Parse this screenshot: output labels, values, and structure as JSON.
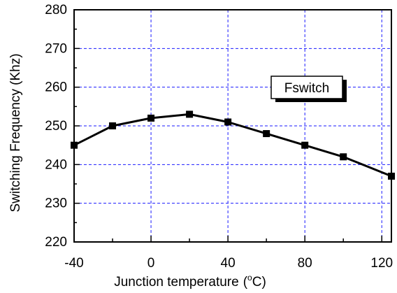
{
  "colors": {
    "grid": "#1a1aff",
    "line": "#000000",
    "frame": "#000000",
    "background": "#ffffff"
  },
  "chart_data": {
    "type": "line",
    "title": "",
    "xlabel": "Junction temperature",
    "xlabel_unit_prefix": "(",
    "xlabel_unit_sup": "o",
    "xlabel_unit_suffix": "C)",
    "ylabel": "Switching Frequency (Khz)",
    "xlim": [
      -40,
      125
    ],
    "ylim": [
      220,
      280
    ],
    "grid": true,
    "grid_style": "dashed",
    "x_major_ticks": [
      -40,
      0,
      40,
      80,
      120
    ],
    "x_minor_ticks": [
      -20,
      20,
      60,
      100
    ],
    "x_tick_labels": [
      "-40",
      "0",
      "40",
      "80",
      "120"
    ],
    "y_ticks": [
      220,
      230,
      240,
      250,
      260,
      270,
      280
    ],
    "y_tick_labels": [
      "220",
      "230",
      "240",
      "250",
      "260",
      "270",
      "280"
    ],
    "legend": {
      "label": "Fswitch",
      "placement": "center-right"
    },
    "series": [
      {
        "name": "Fswitch",
        "marker": "square",
        "x": [
          -40,
          -20,
          0,
          20,
          40,
          60,
          80,
          100,
          125
        ],
        "y": [
          245,
          250,
          252,
          253,
          251,
          248,
          245,
          242,
          237
        ]
      }
    ]
  }
}
